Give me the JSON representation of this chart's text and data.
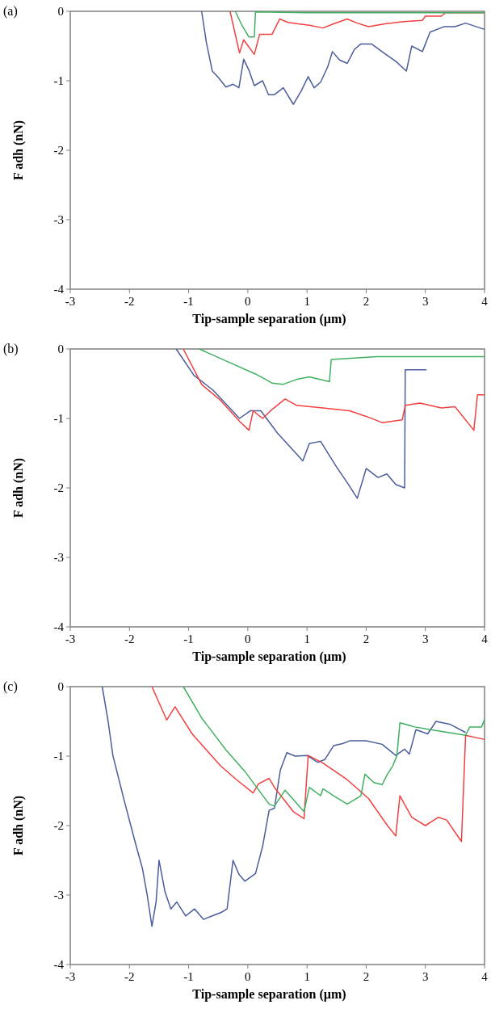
{
  "chart_data": [
    {
      "type": "line",
      "title": "(a)",
      "xlabel": "Tip-sample separation (µm)",
      "ylabel": "F adh (nN)",
      "xlim": [
        -3,
        4
      ],
      "ylim": [
        -4,
        0
      ],
      "xticks": [
        -3,
        -2,
        -1,
        0,
        1,
        2,
        3,
        4
      ],
      "yticks": [
        -4,
        -3,
        -2,
        -1,
        0
      ],
      "series": [
        {
          "color": "#4a5d9c",
          "x": [
            -0.78,
            -0.7,
            -0.6,
            -0.5,
            -0.37,
            -0.25,
            -0.15,
            -0.07,
            0.02,
            0.11,
            0.25,
            0.35,
            0.45,
            0.6,
            0.77,
            0.9,
            1.02,
            1.12,
            1.23,
            1.35,
            1.43,
            1.55,
            1.68,
            1.8,
            1.91,
            2.09,
            2.3,
            2.5,
            2.68,
            2.77,
            2.95,
            3.08,
            3.32,
            3.5,
            3.68,
            4.0
          ],
          "values": [
            0,
            -0.45,
            -0.86,
            -0.95,
            -1.09,
            -1.05,
            -1.1,
            -0.69,
            -0.85,
            -1.07,
            -1.0,
            -1.2,
            -1.2,
            -1.1,
            -1.34,
            -1.15,
            -0.94,
            -1.1,
            -1.02,
            -0.8,
            -0.58,
            -0.7,
            -0.75,
            -0.55,
            -0.47,
            -0.47,
            -0.6,
            -0.72,
            -0.86,
            -0.5,
            -0.58,
            -0.3,
            -0.22,
            -0.22,
            -0.17,
            -0.26
          ]
        },
        {
          "color": "#f04040",
          "x": [
            -0.3,
            -0.14,
            -0.07,
            0.11,
            0.2,
            0.41,
            0.54,
            0.68,
            0.85,
            1.04,
            1.27,
            1.45,
            1.68,
            1.85,
            2.04,
            2.32,
            2.6,
            2.95,
            3.0,
            3.27,
            3.34,
            4.0
          ],
          "values": [
            0,
            -0.6,
            -0.41,
            -0.62,
            -0.33,
            -0.33,
            -0.11,
            -0.16,
            -0.18,
            -0.2,
            -0.24,
            -0.18,
            -0.11,
            -0.17,
            -0.22,
            -0.18,
            -0.15,
            -0.13,
            -0.07,
            -0.07,
            -0.02,
            -0.02
          ]
        },
        {
          "color": "#40b060",
          "x": [
            -0.21,
            -0.1,
            0.02,
            0.11,
            0.13,
            1.0,
            2.0,
            3.0,
            4.0
          ],
          "values": [
            0,
            -0.2,
            -0.37,
            -0.37,
            -0.01,
            -0.02,
            -0.02,
            -0.02,
            -0.02
          ]
        }
      ]
    },
    {
      "type": "line",
      "title": "(b)",
      "xlabel": "Tip-sample separation (µm)",
      "ylabel": "F adh (nN)",
      "xlim": [
        -3,
        4
      ],
      "ylim": [
        -4,
        0
      ],
      "xticks": [
        -3,
        -2,
        -1,
        0,
        1,
        2,
        3,
        4
      ],
      "yticks": [
        -4,
        -3,
        -2,
        -1,
        0
      ],
      "series": [
        {
          "color": "#4a5d9c",
          "x": [
            -1.21,
            -0.91,
            -0.59,
            -0.14,
            0.04,
            0.22,
            0.5,
            0.93,
            1.04,
            1.23,
            1.5,
            1.7,
            1.85,
            2.0,
            2.2,
            2.35,
            2.5,
            2.65,
            2.66,
            3.02
          ],
          "values": [
            0,
            -0.38,
            -0.59,
            -1.0,
            -0.89,
            -0.89,
            -1.21,
            -1.61,
            -1.36,
            -1.33,
            -1.7,
            -1.95,
            -2.15,
            -1.72,
            -1.85,
            -1.8,
            -1.95,
            -2.0,
            -0.3,
            -0.3
          ]
        },
        {
          "color": "#f04040",
          "x": [
            -1.09,
            -0.78,
            -0.46,
            -0.14,
            0.02,
            0.09,
            0.25,
            0.41,
            0.63,
            0.82,
            1.27,
            1.72,
            2.0,
            2.27,
            2.61,
            2.66,
            2.91,
            3.27,
            3.5,
            3.82,
            3.88,
            4.0
          ],
          "values": [
            0,
            -0.51,
            -0.74,
            -1.04,
            -1.17,
            -0.89,
            -1.0,
            -0.87,
            -0.72,
            -0.81,
            -0.85,
            -0.89,
            -0.97,
            -1.06,
            -1.02,
            -0.81,
            -0.78,
            -0.85,
            -0.83,
            -1.17,
            -0.66,
            -0.66
          ]
        },
        {
          "color": "#40b060",
          "x": [
            -0.82,
            -0.32,
            0.13,
            0.41,
            0.59,
            0.82,
            1.04,
            1.38,
            1.41,
            2.18,
            4.0
          ],
          "values": [
            0,
            -0.19,
            -0.36,
            -0.49,
            -0.51,
            -0.44,
            -0.4,
            -0.47,
            -0.15,
            -0.11,
            -0.11
          ]
        }
      ]
    },
    {
      "type": "line",
      "title": "(c)",
      "xlabel": "Tip-sample separation (µm)",
      "ylabel": "F adh (nN)",
      "xlim": [
        -3,
        4
      ],
      "ylim": [
        -4,
        0
      ],
      "xticks": [
        -3,
        -2,
        -1,
        0,
        1,
        2,
        3,
        4
      ],
      "yticks": [
        -4,
        -3,
        -2,
        -1,
        0
      ],
      "series": [
        {
          "color": "#4a5d9c",
          "x": [
            -2.46,
            -2.36,
            -2.28,
            -2.1,
            -1.9,
            -1.78,
            -1.7,
            -1.62,
            -1.55,
            -1.5,
            -1.4,
            -1.3,
            -1.2,
            -1.05,
            -0.9,
            -0.75,
            -0.6,
            -0.45,
            -0.35,
            -0.25,
            -0.15,
            -0.05,
            0.13,
            0.25,
            0.36,
            0.45,
            0.55,
            0.66,
            0.8,
            1.0,
            1.18,
            1.3,
            1.45,
            1.6,
            1.72,
            2.0,
            2.27,
            2.5,
            2.65,
            2.73,
            2.84,
            3.04,
            3.18,
            3.41,
            3.68
          ],
          "values": [
            0,
            -0.5,
            -0.99,
            -1.6,
            -2.25,
            -2.62,
            -3.0,
            -3.45,
            -3.1,
            -2.5,
            -2.95,
            -3.2,
            -3.1,
            -3.3,
            -3.2,
            -3.35,
            -3.3,
            -3.25,
            -3.2,
            -2.5,
            -2.7,
            -2.8,
            -2.69,
            -2.3,
            -1.78,
            -1.75,
            -1.2,
            -0.95,
            -1.0,
            -0.99,
            -1.09,
            -1.05,
            -0.85,
            -0.82,
            -0.78,
            -0.78,
            -0.83,
            -0.99,
            -0.9,
            -0.97,
            -0.62,
            -0.68,
            -0.5,
            -0.54,
            -0.66
          ]
        },
        {
          "color": "#f04040",
          "x": [
            -1.62,
            -1.37,
            -1.23,
            -0.94,
            -0.46,
            -0.19,
            0.09,
            0.18,
            0.36,
            0.45,
            0.77,
            0.95,
            1.02,
            1.27,
            1.68,
            2.04,
            2.36,
            2.5,
            2.57,
            2.77,
            3.0,
            3.22,
            3.36,
            3.61,
            3.68,
            4.0
          ],
          "values": [
            0,
            -0.48,
            -0.29,
            -0.68,
            -1.14,
            -1.34,
            -1.53,
            -1.4,
            -1.32,
            -1.45,
            -1.8,
            -1.9,
            -0.99,
            -1.1,
            -1.34,
            -1.61,
            -2.0,
            -2.15,
            -1.57,
            -1.88,
            -2.0,
            -1.88,
            -1.92,
            -2.23,
            -0.7,
            -0.76
          ]
        },
        {
          "color": "#40b060",
          "x": [
            -1.09,
            -0.78,
            -0.37,
            -0.05,
            0.36,
            0.45,
            0.63,
            0.95,
            1.04,
            1.23,
            1.27,
            1.45,
            1.68,
            1.91,
            1.98,
            2.13,
            2.27,
            2.36,
            2.45,
            2.52,
            2.57,
            2.82,
            3.09,
            3.68,
            3.75,
            3.95,
            4.0
          ],
          "values": [
            0,
            -0.45,
            -0.91,
            -1.22,
            -1.69,
            -1.72,
            -1.49,
            -1.8,
            -1.45,
            -1.57,
            -1.47,
            -1.57,
            -1.69,
            -1.57,
            -1.26,
            -1.38,
            -1.41,
            -1.26,
            -1.14,
            -0.99,
            -0.52,
            -0.58,
            -0.62,
            -0.7,
            -0.58,
            -0.58,
            -0.47
          ]
        }
      ]
    }
  ]
}
